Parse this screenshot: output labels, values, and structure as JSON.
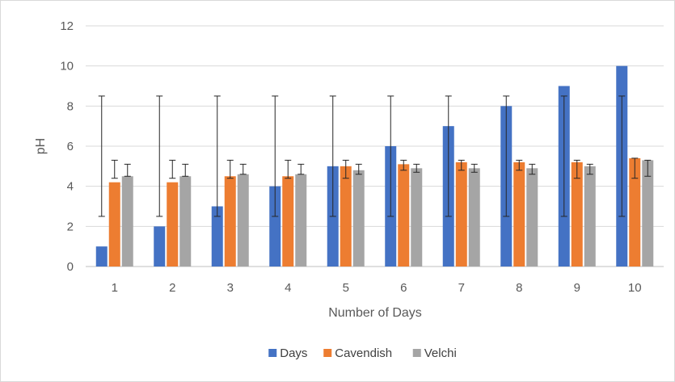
{
  "chart_data": {
    "type": "bar",
    "categories": [
      "1",
      "2",
      "3",
      "4",
      "5",
      "6",
      "7",
      "8",
      "9",
      "10"
    ],
    "series": [
      {
        "name": "Days",
        "color": "#4472C4",
        "values": [
          1,
          2,
          3,
          4,
          5,
          6,
          7,
          8,
          9,
          10
        ],
        "error_low": [
          2.5,
          2.5,
          2.5,
          2.5,
          2.5,
          2.5,
          2.5,
          2.5,
          2.5,
          2.5
        ],
        "error_high": [
          8.5,
          8.5,
          8.5,
          8.5,
          8.5,
          8.5,
          8.5,
          8.5,
          8.5,
          8.5
        ]
      },
      {
        "name": "Cavendish",
        "color": "#ED7D31",
        "values": [
          4.2,
          4.2,
          4.5,
          4.5,
          5.0,
          5.1,
          5.2,
          5.2,
          5.2,
          5.4
        ],
        "error_low": [
          4.4,
          4.4,
          4.4,
          4.4,
          4.4,
          4.8,
          4.8,
          4.8,
          4.4,
          4.4
        ],
        "error_high": [
          5.3,
          5.3,
          5.3,
          5.3,
          5.3,
          5.3,
          5.3,
          5.3,
          5.3,
          5.4
        ]
      },
      {
        "name": "Velchi",
        "color": "#A5A5A5",
        "values": [
          4.5,
          4.5,
          4.6,
          4.6,
          4.8,
          4.9,
          4.9,
          4.9,
          5.0,
          5.3
        ],
        "error_low": [
          4.5,
          4.5,
          4.6,
          4.6,
          4.6,
          4.7,
          4.7,
          4.6,
          4.6,
          4.5
        ],
        "error_high": [
          5.1,
          5.1,
          5.1,
          5.1,
          5.1,
          5.1,
          5.1,
          5.1,
          5.1,
          5.3
        ]
      }
    ],
    "xlabel": "Number of Days",
    "ylabel": "pH",
    "ylim": [
      0,
      12
    ],
    "yticks": [
      "0",
      "2",
      "4",
      "6",
      "8",
      "10",
      "12"
    ],
    "grid": true,
    "legend": "bottom"
  }
}
